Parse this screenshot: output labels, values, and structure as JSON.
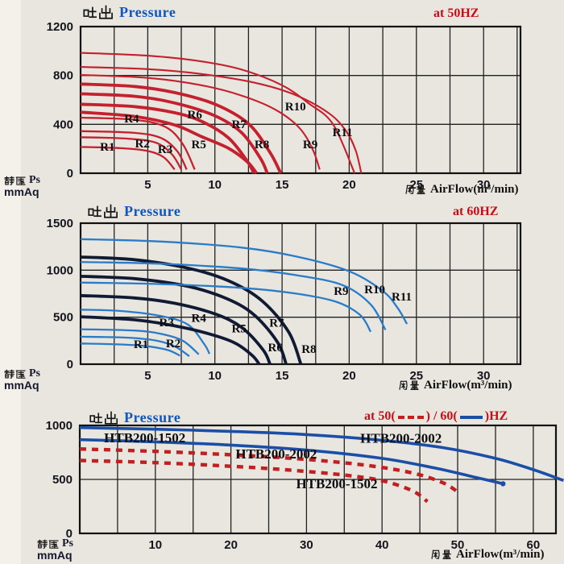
{
  "page": {
    "bg": "#e9e6df"
  },
  "colors": {
    "red": "#c5202e",
    "freq_red": "#c40d16",
    "title_blue": "#0f56c0",
    "light_blue": "#2a7cc9",
    "navy": "#101b33",
    "blue": "#1b4ea6",
    "dash_red": "#c22020",
    "grid": "#222222",
    "text": "#101010"
  },
  "chart_data": [
    {
      "type": "line",
      "title_cjk": "吐出",
      "title_en": "Pressure",
      "freq": {
        "label": "at 50HZ"
      },
      "ylabel_cjk": "靜壓",
      "ylabel_en": "Ps",
      "ylabel_unit": "mmAq",
      "xlabel_cjk": "風量",
      "xlabel_en": "AirFlow(m³/min)",
      "xlim": [
        0,
        32.75
      ],
      "ylim": [
        0,
        1200
      ],
      "x_ticks": [
        5,
        10,
        15,
        20,
        25,
        30
      ],
      "y_ticks": [
        0,
        400,
        800,
        1200
      ],
      "x_grid_step": 2.5,
      "y_grid_step": 400,
      "series": [
        {
          "name": "R1",
          "color": "red",
          "w": 2.3,
          "label": "R1",
          "label_pos": [
            2.0,
            185
          ],
          "points": [
            [
              0,
              215
            ],
            [
              3,
              205
            ],
            [
              5,
              182
            ],
            [
              6.2,
              130
            ],
            [
              7.0,
              30
            ]
          ]
        },
        {
          "name": "R2",
          "color": "red",
          "w": 2.3,
          "label": "R2",
          "label_pos": [
            4.6,
            210
          ],
          "points": [
            [
              0,
              295
            ],
            [
              3.5,
              283
            ],
            [
              5.6,
              250
            ],
            [
              6.8,
              155
            ],
            [
              7.5,
              30
            ]
          ]
        },
        {
          "name": "R3",
          "color": "red",
          "w": 2.3,
          "label": "R3",
          "label_pos": [
            6.3,
            165
          ],
          "points": [
            [
              0,
              345
            ],
            [
              4,
              330
            ],
            [
              6,
              288
            ],
            [
              7.2,
              180
            ],
            [
              7.9,
              30
            ]
          ]
        },
        {
          "name": "R4",
          "color": "red",
          "w": 2.3,
          "label": "R4",
          "label_pos": [
            3.8,
            415
          ],
          "points": [
            [
              0,
              455
            ],
            [
              4,
              438
            ],
            [
              6.3,
              380
            ],
            [
              7.6,
              240
            ],
            [
              8.5,
              30
            ]
          ]
        },
        {
          "name": "R5",
          "color": "red",
          "w": 3.8,
          "label": "R5",
          "label_pos": [
            8.8,
            204
          ],
          "points": [
            [
              0,
              500
            ],
            [
              4,
              465
            ],
            [
              7,
              395
            ],
            [
              9,
              300
            ],
            [
              11,
              205
            ],
            [
              12.4,
              95
            ],
            [
              13.1,
              0
            ]
          ]
        },
        {
          "name": "R6",
          "color": "red",
          "w": 3.8,
          "label": "R6",
          "label_pos": [
            8.5,
            448
          ],
          "points": [
            [
              0,
              565
            ],
            [
              4,
              545
            ],
            [
              7,
              495
            ],
            [
              9,
              425
            ],
            [
              11,
              290
            ],
            [
              12.4,
              100
            ],
            [
              12.9,
              0
            ]
          ]
        },
        {
          "name": "R7",
          "color": "red",
          "w": 3.8,
          "label": "R7",
          "label_pos": [
            11.8,
            369
          ],
          "points": [
            [
              0,
              650
            ],
            [
              4,
              630
            ],
            [
              7,
              575
            ],
            [
              10,
              470
            ],
            [
              12,
              330
            ],
            [
              13.4,
              120
            ],
            [
              13.9,
              0
            ]
          ]
        },
        {
          "name": "R8",
          "color": "red",
          "w": 3.8,
          "label": "R8",
          "label_pos": [
            13.5,
            204
          ],
          "points": [
            [
              0,
              730
            ],
            [
              4,
              710
            ],
            [
              7,
              660
            ],
            [
              10,
              565
            ],
            [
              12.5,
              405
            ],
            [
              14.1,
              170
            ],
            [
              14.9,
              0
            ]
          ]
        },
        {
          "name": "R9",
          "color": "red",
          "w": 2.1,
          "label": "R9",
          "label_pos": [
            17.1,
            204
          ],
          "points": [
            [
              0,
              805
            ],
            [
              5,
              780
            ],
            [
              9,
              720
            ],
            [
              12,
              635
            ],
            [
              14.5,
              520
            ],
            [
              16.3,
              370
            ],
            [
              17.3,
              190
            ],
            [
              17.8,
              30
            ]
          ]
        },
        {
          "name": "R10",
          "color": "red",
          "w": 2.1,
          "label": "R10",
          "label_pos": [
            16.0,
            514
          ],
          "points": [
            [
              0,
              985
            ],
            [
              5,
              962
            ],
            [
              9,
              915
            ],
            [
              12,
              848
            ],
            [
              15,
              720
            ],
            [
              17,
              570
            ],
            [
              18.8,
              400
            ],
            [
              20.4,
              0
            ]
          ]
        },
        {
          "name": "R11",
          "color": "red",
          "w": 2.1,
          "label": "R11",
          "label_pos": [
            19.5,
            303
          ],
          "points": [
            [
              0,
              870
            ],
            [
              5,
              852
            ],
            [
              9,
              812
            ],
            [
              13,
              740
            ],
            [
              16,
              640
            ],
            [
              18.5,
              490
            ],
            [
              19.8,
              340
            ],
            [
              20.5,
              180
            ],
            [
              20.9,
              0
            ]
          ]
        }
      ]
    },
    {
      "type": "line",
      "title_cjk": "吐出",
      "title_en": "Pressure",
      "freq": {
        "label": "at 60HZ"
      },
      "ylabel_cjk": "靜壓",
      "ylabel_en": "Ps",
      "ylabel_unit": "mmAq",
      "xlabel_cjk": "風量",
      "xlabel_en": "AirFlow(m³/min)",
      "xlim": [
        0,
        32.75
      ],
      "ylim": [
        0,
        1500
      ],
      "x_ticks": [
        5,
        10,
        15,
        20,
        25,
        30
      ],
      "y_ticks": [
        0,
        500,
        1000,
        1500
      ],
      "x_grid_step": 2.5,
      "y_grid_step": 500,
      "series": [
        {
          "name": "R1",
          "color": "light_blue",
          "w": 2.3,
          "label": "R1",
          "label_pos": [
            4.5,
            170
          ],
          "points": [
            [
              0,
              220
            ],
            [
              3,
              210
            ],
            [
              5,
              190
            ],
            [
              6.5,
              150
            ],
            [
              7.4,
              90
            ]
          ]
        },
        {
          "name": "R2",
          "color": "light_blue",
          "w": 2.3,
          "label": "R2",
          "label_pos": [
            6.9,
            180
          ],
          "points": [
            [
              0,
              292
            ],
            [
              3.5,
              282
            ],
            [
              5.6,
              252
            ],
            [
              7.0,
              190
            ],
            [
              8.1,
              85
            ]
          ]
        },
        {
          "name": "R3",
          "color": "light_blue",
          "w": 2.3,
          "label": "R3",
          "label_pos": [
            6.4,
            405
          ],
          "points": [
            [
              0,
              372
            ],
            [
              4,
              358
            ],
            [
              6,
              322
            ],
            [
              7.6,
              250
            ],
            [
              8.8,
              105
            ]
          ]
        },
        {
          "name": "R4",
          "color": "light_blue",
          "w": 2.3,
          "label": "R4",
          "label_pos": [
            8.8,
            450
          ],
          "points": [
            [
              0,
              580
            ],
            [
              3,
              566
            ],
            [
              6,
              512
            ],
            [
              8,
              420
            ],
            [
              9.2,
              215
            ],
            [
              9.6,
              110
            ]
          ]
        },
        {
          "name": "R5",
          "color": "navy",
          "w": 3.8,
          "label": "R5",
          "label_pos": [
            11.8,
            340
          ],
          "points": [
            [
              0,
              505
            ],
            [
              4,
              472
            ],
            [
              7,
              408
            ],
            [
              9.5,
              325
            ],
            [
              11.5,
              225
            ],
            [
              12.8,
              90
            ],
            [
              13.3,
              0
            ]
          ]
        },
        {
          "name": "R6",
          "color": "navy",
          "w": 3.8,
          "label": "R6",
          "label_pos": [
            14.5,
            137
          ],
          "points": [
            [
              0,
              730
            ],
            [
              4,
              705
            ],
            [
              7,
              648
            ],
            [
              10,
              535
            ],
            [
              12,
              390
            ],
            [
              13.6,
              150
            ],
            [
              14.1,
              0
            ]
          ]
        },
        {
          "name": "R7",
          "color": "navy",
          "w": 3.8,
          "label": "R7",
          "label_pos": [
            14.6,
            400
          ],
          "points": [
            [
              0,
              935
            ],
            [
              4,
              910
            ],
            [
              8,
              828
            ],
            [
              11,
              690
            ],
            [
              13,
              515
            ],
            [
              14.7,
              225
            ],
            [
              15.3,
              0
            ]
          ]
        },
        {
          "name": "R8",
          "color": "navy",
          "w": 3.8,
          "label": "R8",
          "label_pos": [
            17.0,
            120
          ],
          "points": [
            [
              0,
              1140
            ],
            [
              4,
              1112
            ],
            [
              8,
              1022
            ],
            [
              11,
              888
            ],
            [
              13.5,
              675
            ],
            [
              15.5,
              340
            ],
            [
              16.4,
              0
            ]
          ]
        },
        {
          "name": "R9",
          "color": "light_blue",
          "w": 2.3,
          "label": "R9",
          "label_pos": [
            19.4,
            737
          ],
          "points": [
            [
              0,
              868
            ],
            [
              6,
              852
            ],
            [
              12,
              812
            ],
            [
              16,
              752
            ],
            [
              19,
              665
            ],
            [
              20.8,
              525
            ],
            [
              21.6,
              345
            ]
          ]
        },
        {
          "name": "R10",
          "color": "light_blue",
          "w": 2.3,
          "label": "R10",
          "label_pos": [
            21.9,
            754
          ],
          "points": [
            [
              0,
              1088
            ],
            [
              6,
              1068
            ],
            [
              12,
              1018
            ],
            [
              16,
              948
            ],
            [
              19.5,
              842
            ],
            [
              21.6,
              635
            ],
            [
              22.7,
              365
            ]
          ]
        },
        {
          "name": "R11",
          "color": "light_blue",
          "w": 2.3,
          "label": "R11",
          "label_pos": [
            23.9,
            677
          ],
          "points": [
            [
              0,
              1330
            ],
            [
              6,
              1305
            ],
            [
              12,
              1240
            ],
            [
              16,
              1148
            ],
            [
              20,
              988
            ],
            [
              22.5,
              778
            ],
            [
              23.6,
              598
            ],
            [
              24.3,
              428
            ]
          ]
        }
      ]
    },
    {
      "type": "line",
      "title_cjk": "吐出",
      "title_en": "Pressure",
      "freq": {
        "prefix": "at 50(",
        "mid": ") / 60(",
        "suffix": ")HZ"
      },
      "ylabel_cjk": "靜壓",
      "ylabel_en": "Ps",
      "ylabel_unit": "mmAq",
      "xlabel_cjk": "風量",
      "xlabel_en": "AirFlow(m³/min)",
      "xlim": [
        0,
        63
      ],
      "ylim": [
        0,
        1000
      ],
      "x_ticks": [
        10,
        20,
        30,
        40,
        50,
        60
      ],
      "y_ticks": [
        0,
        500,
        1000
      ],
      "x_grid_step": 5,
      "y_grid_step": 500,
      "series": [
        {
          "name": "HTB200-2002 60Hz",
          "color": "blue",
          "w": 3.6,
          "label": "HTB200-2002",
          "label_pos": [
            42.5,
            838
          ],
          "points": [
            [
              0,
              980
            ],
            [
              10,
              965
            ],
            [
              20,
              945
            ],
            [
              30,
              915
            ],
            [
              40,
              862
            ],
            [
              48,
              795
            ],
            [
              55,
              695
            ],
            [
              60,
              590
            ],
            [
              64,
              490
            ]
          ]
        },
        {
          "name": "HTB200-1502 60Hz",
          "color": "blue",
          "w": 3.6,
          "end_dot": true,
          "label": "HTB200-1502",
          "label_pos": [
            8.6,
            845
          ],
          "points": [
            [
              0,
              868
            ],
            [
              10,
              848
            ],
            [
              20,
              818
            ],
            [
              30,
              772
            ],
            [
              40,
              695
            ],
            [
              47,
              605
            ],
            [
              52,
              525
            ],
            [
              56,
              460
            ]
          ]
        },
        {
          "name": "HTB200-2002 50Hz",
          "color": "dash_red",
          "w": 4.4,
          "dash": true,
          "label": "HTB200-2002",
          "label_pos": [
            26,
            695
          ],
          "points": [
            [
              0,
              782
            ],
            [
              10,
              760
            ],
            [
              20,
              728
            ],
            [
              30,
              685
            ],
            [
              38,
              630
            ],
            [
              44,
              560
            ],
            [
              48,
              470
            ],
            [
              50,
              385
            ]
          ]
        },
        {
          "name": "HTB200-1502 50Hz",
          "color": "dash_red",
          "w": 4.4,
          "dash": true,
          "label": "HTB200-1502",
          "label_pos": [
            34,
            418
          ],
          "points": [
            [
              0,
              675
            ],
            [
              10,
              655
            ],
            [
              20,
              622
            ],
            [
              28,
              585
            ],
            [
              35,
              540
            ],
            [
              40,
              488
            ],
            [
              44,
              395
            ],
            [
              46,
              295
            ]
          ]
        }
      ]
    }
  ]
}
